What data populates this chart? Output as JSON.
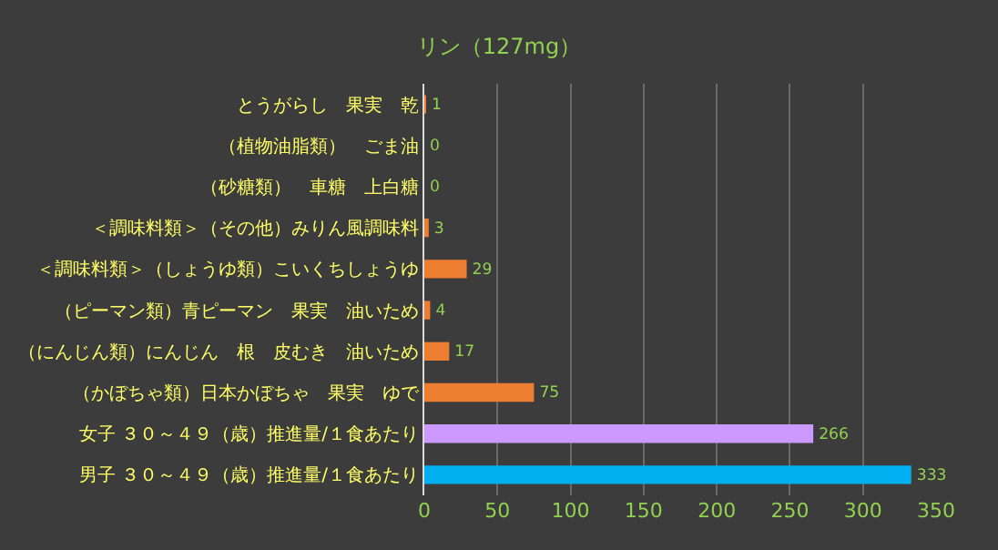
{
  "chart_data": {
    "type": "bar",
    "orientation": "horizontal",
    "title": "リン（127mg）",
    "categories": [
      "とうがらし　果実　乾",
      "（植物油脂類）　ごま油",
      "（砂糖類）　車糖　上白糖",
      "＜調味料類＞（その他）みりん風調味料",
      "＜調味料類＞（しょうゆ類）こいくちしょうゆ",
      "（ピーマン類）青ピーマン　果実　油いため",
      "（にんじん類）にんじん　根　皮むき　油いため",
      "（かぼちゃ類）日本かぼちゃ　果実　ゆで",
      "女子 ３０～４９（歳）推進量/１食あたり",
      "男子 ３０～４９（歳）推進量/１食あたり"
    ],
    "values": [
      1,
      0,
      0,
      3,
      29,
      4,
      17,
      75,
      266,
      333
    ],
    "colors": [
      "#ed7d31",
      "#ed7d31",
      "#ed7d31",
      "#ed7d31",
      "#ed7d31",
      "#ed7d31",
      "#ed7d31",
      "#ed7d31",
      "#cc99ff",
      "#00b0f0"
    ],
    "data_labels": true,
    "xlim": [
      0,
      350
    ],
    "xticks": [
      0,
      50,
      100,
      150,
      200,
      250,
      300,
      350
    ],
    "grid": "x",
    "legend": false
  }
}
